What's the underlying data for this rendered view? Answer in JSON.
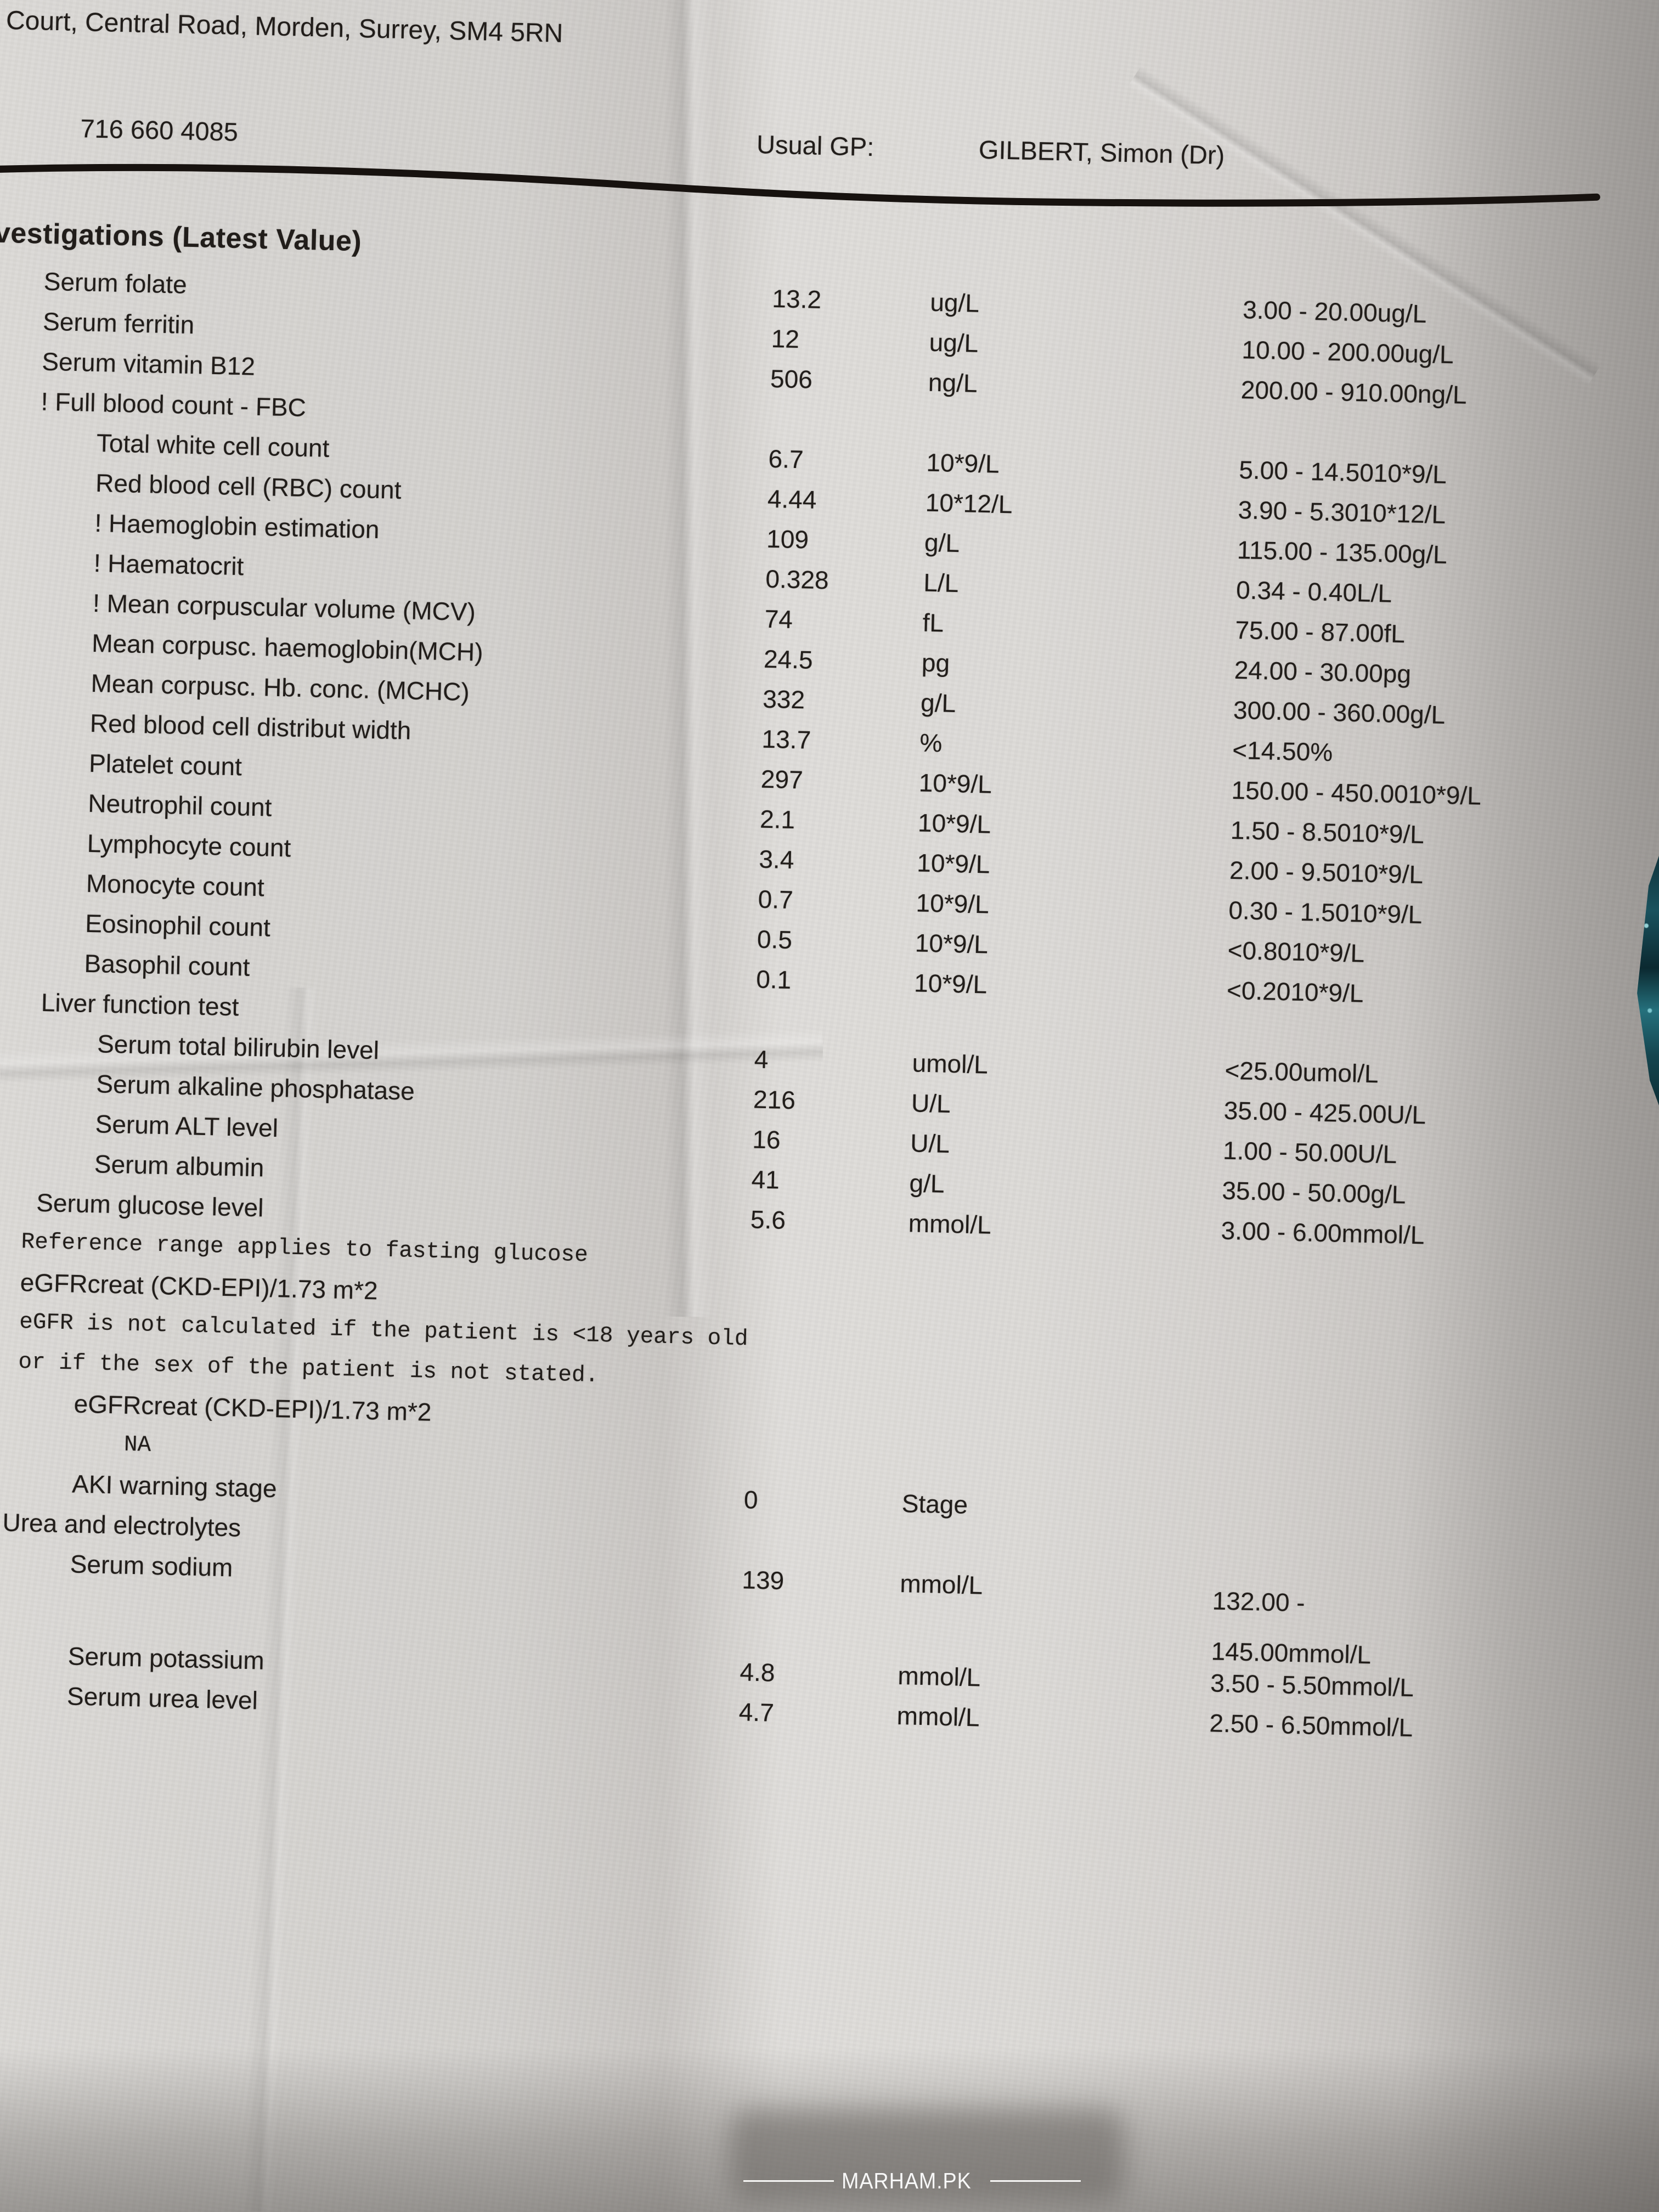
{
  "colors": {
    "paper": "#d7d5d1",
    "ink": "#211d1a",
    "rule": "#17120f",
    "watermark_text": "#ffffff",
    "fabric_teal": "#1a525e"
  },
  "header": {
    "address_line": "Court, Central Road, Morden, Surrey, SM4 5RN",
    "phone": "716 660 4085",
    "usual_gp_label": "Usual GP:",
    "usual_gp_name": "GILBERT, Simon (Dr)"
  },
  "report": {
    "section_title": "vestigations (Latest Value)",
    "rows": [
      {
        "kind": "result",
        "label": "Serum folate",
        "value": "13.2",
        "units": "ug/L",
        "range": "3.00 - 20.00ug/L",
        "indent": 1
      },
      {
        "kind": "result",
        "label": "Serum ferritin",
        "value": "12",
        "units": "ug/L",
        "range": "10.00 - 200.00ug/L",
        "indent": 1
      },
      {
        "kind": "result",
        "label": "Serum vitamin B12",
        "value": "506",
        "units": "ng/L",
        "range": "200.00 - 910.00ng/L",
        "indent": 1
      },
      {
        "kind": "section",
        "label": "! Full blood count - FBC",
        "indent": 1
      },
      {
        "kind": "result",
        "label": "Total white cell count",
        "value": "6.7",
        "units": "10*9/L",
        "range": "5.00 - 14.5010*9/L",
        "indent": 3
      },
      {
        "kind": "result",
        "label": "Red blood cell (RBC) count",
        "value": "4.44",
        "units": "10*12/L",
        "range": "3.90 - 5.3010*12/L",
        "indent": 3
      },
      {
        "kind": "result",
        "label": "! Haemoglobin estimation",
        "value": "109",
        "units": "g/L",
        "range": "115.00 - 135.00g/L",
        "indent": 3
      },
      {
        "kind": "result",
        "label": "! Haematocrit",
        "value": "0.328",
        "units": "L/L",
        "range": "0.34 - 0.40L/L",
        "indent": 3
      },
      {
        "kind": "result",
        "label": "! Mean corpuscular volume (MCV)",
        "value": "74",
        "units": "fL",
        "range": "75.00 - 87.00fL",
        "indent": 3
      },
      {
        "kind": "result",
        "label": "Mean corpusc. haemoglobin(MCH)",
        "value": "24.5",
        "units": "pg",
        "range": "24.00 - 30.00pg",
        "indent": 3
      },
      {
        "kind": "result",
        "label": "Mean corpusc. Hb. conc. (MCHC)",
        "value": "332",
        "units": "g/L",
        "range": "300.00 - 360.00g/L",
        "indent": 3
      },
      {
        "kind": "result",
        "label": "Red blood cell distribut width",
        "value": "13.7",
        "units": "%",
        "range": "<14.50%",
        "indent": 3
      },
      {
        "kind": "result",
        "label": "Platelet count",
        "value": "297",
        "units": "10*9/L",
        "range": "150.00 - 450.0010*9/L",
        "indent": 3
      },
      {
        "kind": "result",
        "label": "Neutrophil count",
        "value": "2.1",
        "units": "10*9/L",
        "range": "1.50 - 8.5010*9/L",
        "indent": 3
      },
      {
        "kind": "result",
        "label": "Lymphocyte count",
        "value": "3.4",
        "units": "10*9/L",
        "range": "2.00 - 9.5010*9/L",
        "indent": 3
      },
      {
        "kind": "result",
        "label": "Monocyte count",
        "value": "0.7",
        "units": "10*9/L",
        "range": "0.30 - 1.5010*9/L",
        "indent": 3
      },
      {
        "kind": "result",
        "label": "Eosinophil count",
        "value": "0.5",
        "units": "10*9/L",
        "range": "<0.8010*9/L",
        "indent": 3
      },
      {
        "kind": "result",
        "label": "Basophil count",
        "value": "0.1",
        "units": "10*9/L",
        "range": "<0.2010*9/L",
        "indent": 3
      },
      {
        "kind": "section",
        "label": "Liver function test",
        "indent": 2
      },
      {
        "kind": "result",
        "label": "Serum total bilirubin level",
        "value": "4",
        "units": "umol/L",
        "range": "<25.00umol/L",
        "indent": 4
      },
      {
        "kind": "result",
        "label": "Serum alkaline phosphatase",
        "value": "216",
        "units": "U/L",
        "range": "35.00 - 425.00U/L",
        "indent": 4
      },
      {
        "kind": "result",
        "label": "Serum ALT level",
        "value": "16",
        "units": "U/L",
        "range": "1.00 - 50.00U/L",
        "indent": 4
      },
      {
        "kind": "result",
        "label": "Serum albumin",
        "value": "41",
        "units": "g/L",
        "range": "35.00 - 50.00g/L",
        "indent": 4
      },
      {
        "kind": "result",
        "label": "Serum glucose level",
        "value": "5.6",
        "units": "mmol/L",
        "range": "3.00 - 6.00mmol/L",
        "indent": 2
      },
      {
        "kind": "mono",
        "label": "Reference range applies to fasting glucose",
        "indent": 1
      },
      {
        "kind": "section",
        "label": "eGFRcreat (CKD-EPI)/1.73 m*2",
        "indent": 1
      },
      {
        "kind": "mono",
        "label": "eGFR is not calculated if the patient is <18 years old",
        "indent": 1
      },
      {
        "kind": "mono",
        "label": "or if the sex of the patient is not stated.",
        "indent": 1
      },
      {
        "kind": "section",
        "label": "eGFRcreat (CKD-EPI)/1.73 m*2",
        "indent": 3
      },
      {
        "kind": "mono",
        "label": "NA",
        "indent": 5
      },
      {
        "kind": "result",
        "label": "AKI warning stage",
        "value": "0",
        "units": "Stage",
        "range": "",
        "indent": 3
      },
      {
        "kind": "section",
        "label": "Urea and electrolytes",
        "indent": 0
      },
      {
        "kind": "result",
        "label": "Serum sodium",
        "value": "139",
        "units": "mmol/L",
        "range": "132.00 -\n145.00mmol/L",
        "indent": 3
      },
      {
        "kind": "result",
        "label": "Serum potassium",
        "value": "4.8",
        "units": "mmol/L",
        "range": "3.50 - 5.50mmol/L",
        "indent": 3
      },
      {
        "kind": "result",
        "label": "Serum urea level",
        "value": "4.7",
        "units": "mmol/L",
        "range": "2.50 - 6.50mmol/L",
        "indent": 3
      }
    ]
  },
  "watermark": {
    "text": "MARHAM.PK"
  }
}
